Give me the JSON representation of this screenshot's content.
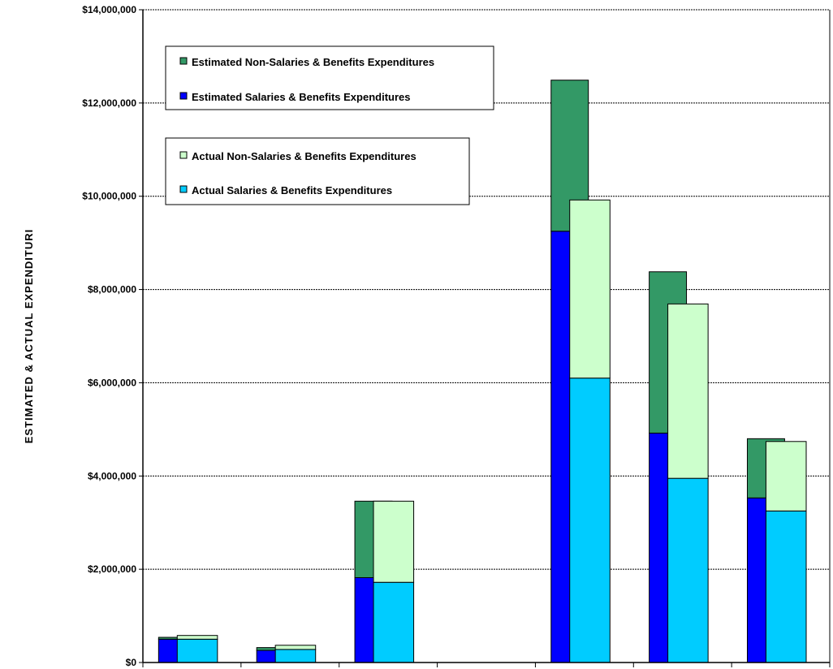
{
  "chart_data": {
    "type": "bar",
    "ylabel": "ESTIMATED & ACTUAL EXPENDITURI",
    "ylim": [
      0,
      14000000
    ],
    "y_ticks": [
      "$0",
      "$2,000,000",
      "$4,000,000",
      "$6,000,000",
      "$8,000,000",
      "$10,000,000",
      "$12,000,000",
      "$14,000,000"
    ],
    "grid": true,
    "categories": [
      "",
      "",
      "",
      "",
      "",
      "",
      ""
    ],
    "legend_estimated": [
      {
        "name": "Estimated Non-Salaries & Benefits Expenditures",
        "color": "#339966"
      },
      {
        "name": "Estimated Salaries & Benefits Expenditures",
        "color": "#0000ff"
      }
    ],
    "legend_actual": [
      {
        "name": "Actual Non-Salaries & Benefits Expenditures",
        "color": "#ccffcc"
      },
      {
        "name": "Actual Salaries & Benefits Expenditures",
        "color": "#00ccff"
      }
    ],
    "series": [
      {
        "name": "Estimated Salaries & Benefits Expenditures",
        "stack": "estimated",
        "values": [
          500000,
          260000,
          1820000,
          0,
          9250000,
          4920000,
          3530000
        ]
      },
      {
        "name": "Estimated Non-Salaries & Benefits Expenditures",
        "stack": "estimated",
        "values": [
          40000,
          60000,
          1640000,
          0,
          3240000,
          3460000,
          1270000
        ]
      },
      {
        "name": "Actual Salaries & Benefits Expenditures",
        "stack": "actual",
        "values": [
          500000,
          280000,
          1720000,
          0,
          6100000,
          3950000,
          3250000
        ]
      },
      {
        "name": "Actual Non-Salaries & Benefits Expenditures",
        "stack": "actual",
        "values": [
          80000,
          90000,
          1740000,
          0,
          3820000,
          3740000,
          1490000
        ]
      }
    ]
  }
}
